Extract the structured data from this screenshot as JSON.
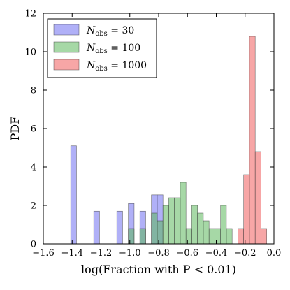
{
  "chart_data": {
    "type": "bar",
    "chart_kind": "overlapping histogram",
    "xlabel": "log(Fraction with P < 0.01)",
    "ylabel": "PDF",
    "xlim": [
      -1.6,
      0.0
    ],
    "ylim": [
      0,
      12
    ],
    "bin_width": 0.04,
    "x_ticks": [
      "−1.6",
      "−1.4",
      "−1.2",
      "−1.0",
      "−0.8",
      "−0.6",
      "−0.4",
      "−0.2",
      "0.0"
    ],
    "y_ticks": [
      "0",
      "2",
      "4",
      "6",
      "8",
      "10",
      "12"
    ],
    "grid": false,
    "legend_position": "top-left",
    "series": [
      {
        "name": "N_obs = 30",
        "legend_label": "N",
        "legend_sub": "obs",
        "legend_value": " = 30",
        "color": "#6f6ff0",
        "opacity": 0.55,
        "bins": [
          {
            "x0": -1.41,
            "x1": -1.37,
            "y": 5.1
          },
          {
            "x0": -1.25,
            "x1": -1.21,
            "y": 1.7
          },
          {
            "x0": -1.09,
            "x1": -1.05,
            "y": 1.7
          },
          {
            "x0": -1.01,
            "x1": -0.97,
            "y": 2.1
          },
          {
            "x0": -0.93,
            "x1": -0.89,
            "y": 1.7
          },
          {
            "x0": -0.85,
            "x1": -0.81,
            "y": 2.55
          },
          {
            "x0": -0.81,
            "x1": -0.77,
            "y": 2.55
          }
        ]
      },
      {
        "name": "N_obs = 100",
        "legend_label": "N",
        "legend_sub": "obs",
        "legend_value": " = 100",
        "color": "#5cb85c",
        "opacity": 0.55,
        "bins": [
          {
            "x0": -1.01,
            "x1": -0.97,
            "y": 0.8
          },
          {
            "x0": -0.93,
            "x1": -0.89,
            "y": 0.8
          },
          {
            "x0": -0.85,
            "x1": -0.81,
            "y": 1.6
          },
          {
            "x0": -0.81,
            "x1": -0.77,
            "y": 1.2
          },
          {
            "x0": -0.77,
            "x1": -0.73,
            "y": 2.0
          },
          {
            "x0": -0.73,
            "x1": -0.69,
            "y": 2.4
          },
          {
            "x0": -0.69,
            "x1": -0.65,
            "y": 2.4
          },
          {
            "x0": -0.65,
            "x1": -0.61,
            "y": 3.2
          },
          {
            "x0": -0.61,
            "x1": -0.57,
            "y": 0.8
          },
          {
            "x0": -0.57,
            "x1": -0.53,
            "y": 2.0
          },
          {
            "x0": -0.53,
            "x1": -0.49,
            "y": 1.6
          },
          {
            "x0": -0.49,
            "x1": -0.45,
            "y": 1.2
          },
          {
            "x0": -0.45,
            "x1": -0.41,
            "y": 0.8
          },
          {
            "x0": -0.41,
            "x1": -0.37,
            "y": 0.8
          },
          {
            "x0": -0.37,
            "x1": -0.33,
            "y": 2.0
          },
          {
            "x0": -0.33,
            "x1": -0.29,
            "y": 0.8
          }
        ]
      },
      {
        "name": "N_obs = 1000",
        "legend_label": "N",
        "legend_sub": "obs",
        "legend_value": " = 1000",
        "color": "#f26a6a",
        "opacity": 0.6,
        "bins": [
          {
            "x0": -0.25,
            "x1": -0.21,
            "y": 0.8
          },
          {
            "x0": -0.21,
            "x1": -0.17,
            "y": 3.6
          },
          {
            "x0": -0.17,
            "x1": -0.13,
            "y": 10.8
          },
          {
            "x0": -0.13,
            "x1": -0.09,
            "y": 4.8
          },
          {
            "x0": -0.09,
            "x1": -0.05,
            "y": 0.8
          }
        ]
      }
    ]
  }
}
